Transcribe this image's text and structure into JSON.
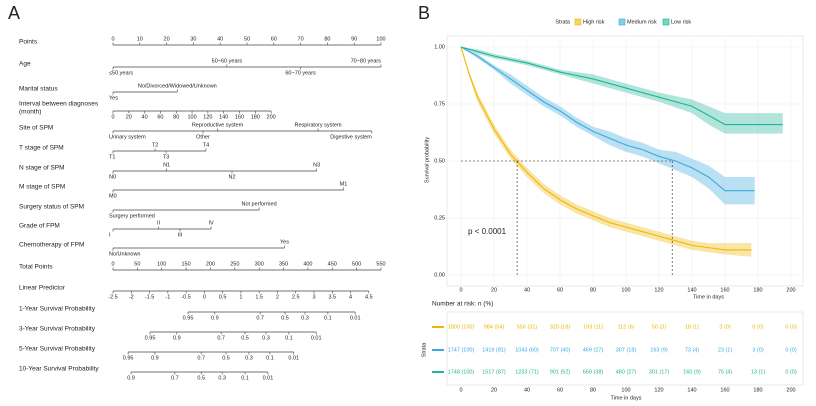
{
  "chart_data": [
    {
      "type": "nomogram",
      "panel": "A",
      "points_lim": [
        0,
        100
      ],
      "total_lim": [
        0,
        550
      ],
      "rows": [
        {
          "label": "Points",
          "scale": "points",
          "ticks": [
            0,
            10,
            20,
            30,
            40,
            50,
            60,
            70,
            80,
            90,
            100
          ]
        },
        {
          "label": "Age",
          "scale": "points",
          "categories": [
            "≤50 years",
            "50~60 years",
            "60~70 years",
            "70~80 years"
          ],
          "points": [
            0,
            42.5,
            70,
            100
          ]
        },
        {
          "label": "Marital status",
          "scale": "points",
          "categories": [
            "Yes",
            "No/Divorced/Widowed/Unknown"
          ],
          "points": [
            0,
            24
          ]
        },
        {
          "label": "Interval between diagnoses (month)",
          "scale": "points",
          "ticks": [
            0,
            20,
            40,
            60,
            80,
            100,
            120,
            140,
            160,
            180,
            200
          ],
          "at": [
            0,
            5.9,
            11.8,
            17.7,
            23.6,
            29.5,
            35.4,
            41.3,
            47.2,
            53.1,
            59
          ]
        },
        {
          "label": "Site of SPM",
          "scale": "points",
          "categories": [
            "Urinary system",
            "Reproductive system",
            "Other",
            "Respiratory system",
            "Digestive system"
          ],
          "points": [
            0,
            39,
            33.6,
            76.5,
            96.6
          ]
        },
        {
          "label": "T stage of SPM",
          "scale": "points",
          "categories": [
            "T1",
            "T2",
            "T3",
            "T4"
          ],
          "points": [
            0,
            15.7,
            19.8,
            34.7
          ]
        },
        {
          "label": "N stage of SPM",
          "scale": "points",
          "categories": [
            "N0",
            "N1",
            "N2",
            "N3"
          ],
          "points": [
            0,
            20,
            44.4,
            76
          ]
        },
        {
          "label": "M stage of SPM",
          "scale": "points",
          "categories": [
            "M0",
            "M1"
          ],
          "points": [
            0,
            86
          ]
        },
        {
          "label": "Surgery status of SPM",
          "scale": "points",
          "categories": [
            "Surgery performed",
            "Not performed"
          ],
          "points": [
            0,
            54.5
          ]
        },
        {
          "label": "Grade of FPM",
          "scale": "points",
          "categories": [
            "I",
            "II",
            "III",
            "IV"
          ],
          "points": [
            0,
            17,
            25,
            36.6
          ]
        },
        {
          "label": "Chemotherapy of FPM",
          "scale": "points",
          "categories": [
            "No/Unknown",
            "Yes"
          ],
          "points": [
            0,
            64
          ]
        },
        {
          "label": "Total Points",
          "scale": "total",
          "ticks": [
            0,
            50,
            100,
            150,
            200,
            250,
            300,
            350,
            400,
            450,
            500,
            550
          ]
        },
        {
          "label": "Linear Predictor",
          "scale": "total",
          "ticks": [
            -2.5,
            -2,
            -1.5,
            -1,
            -0.5,
            0,
            0.5,
            1,
            1.5,
            2,
            2.5,
            3,
            3.5,
            4,
            4.5
          ],
          "at": [
            0,
            37.5,
            75,
            112.5,
            150,
            187.5,
            225,
            262.5,
            300,
            337.5,
            375,
            412.5,
            450,
            487.5,
            525
          ]
        },
        {
          "label": "1-Year Survival Probability",
          "scale": "total",
          "ticks": [
            0.95,
            0.9,
            0.7,
            0.5,
            0.3,
            0.1,
            0.01
          ],
          "at": [
            154,
            209,
            302,
            353,
            394,
            441,
            497
          ]
        },
        {
          "label": "3-Year Survival Probability",
          "scale": "total",
          "ticks": [
            0.95,
            0.9,
            0.7,
            0.5,
            0.3,
            0.1,
            0.01
          ],
          "at": [
            76,
            131,
            222,
            271,
            314,
            361,
            417
          ]
        },
        {
          "label": "5-Year Survival Probability",
          "scale": "total",
          "ticks": [
            0.95,
            0.9,
            0.7,
            0.5,
            0.3,
            0.1,
            0.01
          ],
          "at": [
            31,
            86,
            181,
            232,
            279,
            322,
            371
          ]
        },
        {
          "label": "10-Year Survival Probability",
          "scale": "total",
          "ticks": [
            0.9,
            0.7,
            0.5,
            0.3,
            0.1,
            0.01
          ],
          "at": [
            37,
            127,
            181,
            224,
            271,
            318
          ]
        }
      ]
    },
    {
      "type": "survival",
      "panel": "B",
      "legend_title": "Strata",
      "xlabel": "Time in days",
      "ylabel": "Survival probability",
      "xlim": [
        0,
        200
      ],
      "xticks": [
        0,
        20,
        40,
        60,
        80,
        100,
        120,
        140,
        160,
        180,
        200
      ],
      "ylim": [
        0,
        1
      ],
      "yticks": [
        {
          "value": 0,
          "label": "0.00"
        },
        {
          "value": 0.25,
          "label": "0.25"
        },
        {
          "value": 0.5,
          "label": "0.50"
        },
        {
          "value": 0.75,
          "label": "0.75"
        },
        {
          "value": 1,
          "label": "1.00"
        }
      ],
      "annotation": "p < 0.0001",
      "reference_y": 0.5,
      "medians": [
        34,
        128
      ],
      "series": [
        {
          "name": "High risk",
          "color": "#EFB700",
          "x": [
            0,
            5,
            10,
            20,
            30,
            40,
            50,
            60,
            70,
            80,
            90,
            100,
            110,
            120,
            130,
            140,
            150,
            160,
            176
          ],
          "values": [
            1,
            0.88,
            0.78,
            0.64,
            0.53,
            0.45,
            0.38,
            0.33,
            0.29,
            0.26,
            0.23,
            0.21,
            0.19,
            0.17,
            0.15,
            0.13,
            0.12,
            0.11,
            0.11
          ],
          "lower": [
            1,
            0.87,
            0.76,
            0.62,
            0.51,
            0.43,
            0.36,
            0.31,
            0.27,
            0.24,
            0.21,
            0.19,
            0.17,
            0.15,
            0.13,
            0.11,
            0.1,
            0.09,
            0.08
          ],
          "upper": [
            1,
            0.89,
            0.8,
            0.66,
            0.55,
            0.47,
            0.4,
            0.35,
            0.31,
            0.28,
            0.25,
            0.23,
            0.21,
            0.19,
            0.17,
            0.15,
            0.14,
            0.14,
            0.14
          ]
        },
        {
          "name": "Medium risk",
          "color": "#3AA9DE",
          "x": [
            0,
            10,
            20,
            30,
            40,
            50,
            60,
            70,
            80,
            90,
            100,
            110,
            120,
            130,
            140,
            150,
            160,
            170,
            178
          ],
          "values": [
            1,
            0.96,
            0.91,
            0.86,
            0.81,
            0.76,
            0.72,
            0.67,
            0.63,
            0.6,
            0.57,
            0.55,
            0.52,
            0.5,
            0.47,
            0.43,
            0.37,
            0.37,
            0.37
          ],
          "lower": [
            1,
            0.95,
            0.9,
            0.84,
            0.79,
            0.74,
            0.7,
            0.65,
            0.61,
            0.57,
            0.54,
            0.52,
            0.49,
            0.46,
            0.43,
            0.38,
            0.31,
            0.31,
            0.31
          ],
          "upper": [
            1,
            0.97,
            0.92,
            0.88,
            0.83,
            0.78,
            0.74,
            0.69,
            0.65,
            0.63,
            0.6,
            0.58,
            0.55,
            0.54,
            0.51,
            0.48,
            0.43,
            0.43,
            0.43
          ]
        },
        {
          "name": "Low risk",
          "color": "#1FB597",
          "x": [
            0,
            10,
            20,
            40,
            60,
            80,
            100,
            120,
            140,
            150,
            160,
            180,
            195
          ],
          "values": [
            1,
            0.98,
            0.96,
            0.93,
            0.89,
            0.86,
            0.82,
            0.78,
            0.74,
            0.7,
            0.66,
            0.66,
            0.66
          ],
          "lower": [
            1,
            0.97,
            0.95,
            0.92,
            0.88,
            0.84,
            0.8,
            0.76,
            0.71,
            0.66,
            0.62,
            0.62,
            0.62
          ],
          "upper": [
            1,
            0.99,
            0.97,
            0.94,
            0.9,
            0.88,
            0.84,
            0.8,
            0.77,
            0.74,
            0.71,
            0.71,
            0.71
          ]
        }
      ],
      "risk_table": {
        "title": "Number at risk: n (%)",
        "ylabel": "Strata",
        "xlabel": "Time in days",
        "rows": [
          [
            "1800 (100)",
            "984 (54)",
            "556 (31)",
            "320 (18)",
            "193 (11)",
            "112 (6)",
            "50 (3)",
            "18 (1)",
            "3 (0)",
            "0 (0)",
            "0 (0)"
          ],
          [
            "1747 (100)",
            "1419 (81)",
            "1043 (60)",
            "707 (40)",
            "469 (27)",
            "307 (18)",
            "163 (9)",
            "73 (4)",
            "23 (1)",
            "3 (0)",
            "0 (0)"
          ],
          [
            "1748 (100)",
            "1517 (87)",
            "1233 (71)",
            "901 (52)",
            "669 (38)",
            "480 (27)",
            "301 (17)",
            "160 (9)",
            "75 (4)",
            "13 (1)",
            "0 (0)"
          ]
        ]
      }
    }
  ]
}
